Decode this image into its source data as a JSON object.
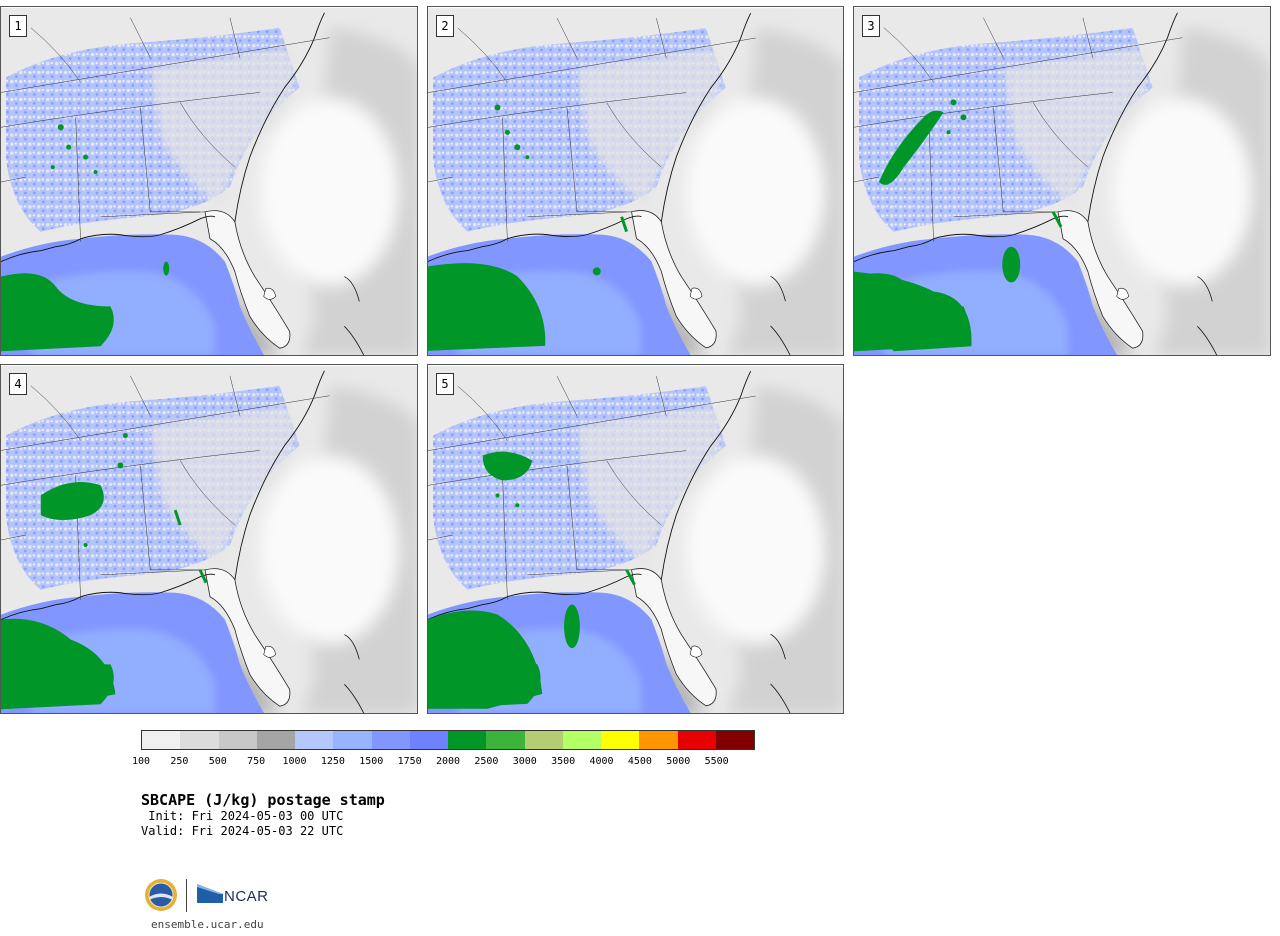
{
  "title": "SBCAPE (J/kg) postage stamp",
  "init": " Init: Fri 2024-05-03 00 UTC",
  "valid": "Valid: Fri 2024-05-03 22 UTC",
  "site": "ensemble.ucar.edu",
  "logos": {
    "ncar": "NCAR"
  },
  "panels": [
    {
      "label": "1"
    },
    {
      "label": "2"
    },
    {
      "label": "3"
    },
    {
      "label": "4"
    },
    {
      "label": "5"
    }
  ],
  "colorbar": {
    "ticks": [
      "100",
      "250",
      "500",
      "750",
      "1000",
      "1250",
      "1500",
      "1750",
      "2000",
      "2500",
      "3000",
      "3500",
      "4000",
      "4500",
      "5000",
      "5500"
    ],
    "colors": [
      "#f0f0f0",
      "#dcdcdc",
      "#c8c8c8",
      "#a5a5a5",
      "#b4c8ff",
      "#96b4ff",
      "#8296ff",
      "#6e82ff",
      "#009628",
      "#3cb43c",
      "#b4cd73",
      "#b4ff64",
      "#ffff00",
      "#ff9600",
      "#e60000",
      "#820000"
    ]
  },
  "colors": {
    "ocean_low": "#e8e8e8",
    "ocean_mid": "#c8c8c8",
    "gulf": "#8296ff",
    "gulf_light": "#96b4ff",
    "high_cape": "#009628",
    "land": "#ebebeb"
  }
}
